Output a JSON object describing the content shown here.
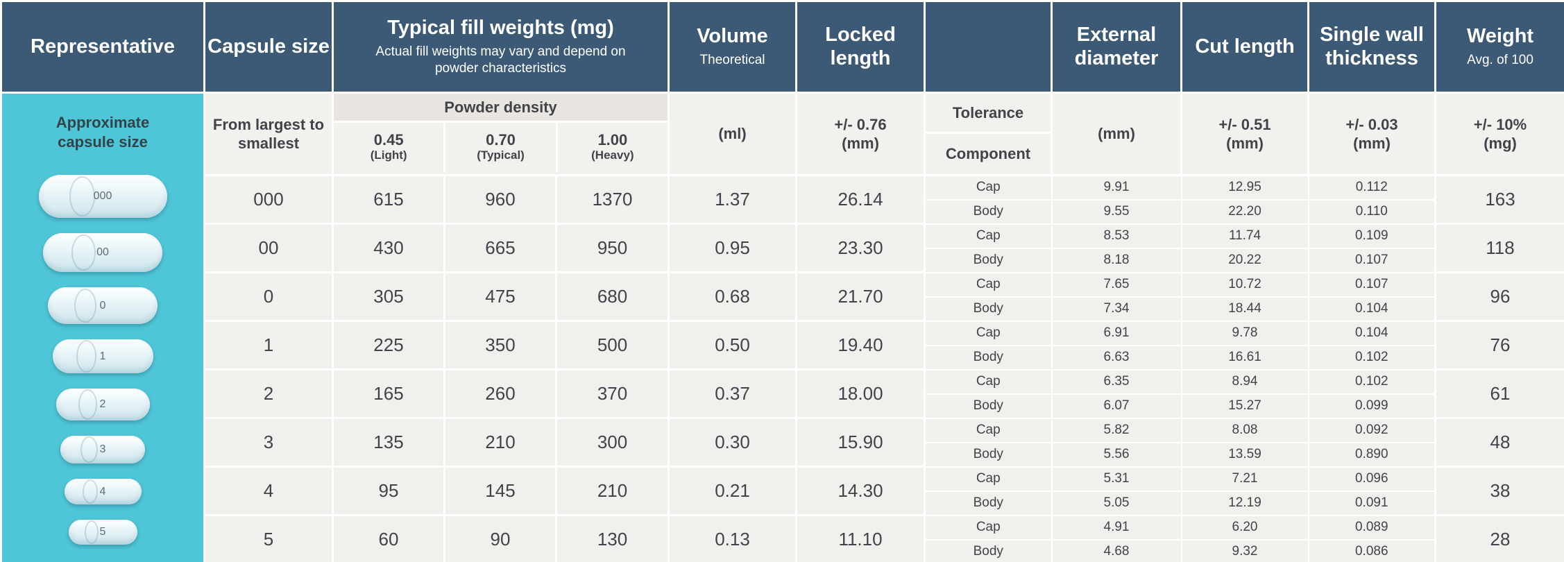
{
  "colors": {
    "header_bg": "#3c5975",
    "sidebar_bg": "#4ec6d7",
    "cell_bg": "#f2f0ed",
    "border": "#ffffff",
    "text_dark": "#3f444a",
    "text_light": "#ffffff"
  },
  "header": {
    "representative": "Representative",
    "capsule_size": "Capsule size",
    "fill_title": "Typical fill weights (mg)",
    "fill_subtitle": "Actual fill weights may vary and depend on powder characteristics",
    "volume": "Volume",
    "volume_sub": "Theoretical",
    "locked_length": "Locked length",
    "external_diameter": "External diameter",
    "cut_length": "Cut length",
    "single_wall": "Single wall thickness",
    "weight": "Weight",
    "weight_sub": "Avg. of 100"
  },
  "subheader": {
    "from_largest": "From largest to smallest",
    "powder_density": "Powder density",
    "densities": [
      {
        "value": "0.45",
        "label": "(Light)"
      },
      {
        "value": "0.70",
        "label": "(Typical)"
      },
      {
        "value": "1.00",
        "label": "(Heavy)"
      }
    ],
    "volume_unit": "(ml)",
    "locked_tol_value": "+/- 0.76",
    "locked_tol_unit": "(mm)",
    "tolerance": "Tolerance",
    "component": "Component",
    "diameter_unit": "(mm)",
    "cut_tol_value": "+/- 0.51",
    "cut_tol_unit": "(mm)",
    "wall_tol_value": "+/- 0.03",
    "wall_tol_unit": "(mm)",
    "weight_tol_value": "+/- 10%",
    "weight_tol_unit": "(mg)"
  },
  "sidebar": {
    "title": "Approximate capsule size",
    "capsules": [
      {
        "label": "000"
      },
      {
        "label": "00"
      },
      {
        "label": "0"
      },
      {
        "label": "1"
      },
      {
        "label": "2"
      },
      {
        "label": "3"
      },
      {
        "label": "4"
      },
      {
        "label": "5"
      }
    ]
  },
  "labels": {
    "cap": "Cap",
    "body": "Body"
  },
  "rows": [
    {
      "size": "000",
      "fill": [
        "615",
        "960",
        "1370"
      ],
      "volume": "1.37",
      "locked": "26.14",
      "cap": {
        "diameter": "9.91",
        "cut": "12.95",
        "wall": "0.112"
      },
      "body": {
        "diameter": "9.55",
        "cut": "22.20",
        "wall": "0.110"
      },
      "weight": "163"
    },
    {
      "size": "00",
      "fill": [
        "430",
        "665",
        "950"
      ],
      "volume": "0.95",
      "locked": "23.30",
      "cap": {
        "diameter": "8.53",
        "cut": "11.74",
        "wall": "0.109"
      },
      "body": {
        "diameter": "8.18",
        "cut": "20.22",
        "wall": "0.107"
      },
      "weight": "118"
    },
    {
      "size": "0",
      "fill": [
        "305",
        "475",
        "680"
      ],
      "volume": "0.68",
      "locked": "21.70",
      "cap": {
        "diameter": "7.65",
        "cut": "10.72",
        "wall": "0.107"
      },
      "body": {
        "diameter": "7.34",
        "cut": "18.44",
        "wall": "0.104"
      },
      "weight": "96"
    },
    {
      "size": "1",
      "fill": [
        "225",
        "350",
        "500"
      ],
      "volume": "0.50",
      "locked": "19.40",
      "cap": {
        "diameter": "6.91",
        "cut": "9.78",
        "wall": "0.104"
      },
      "body": {
        "diameter": "6.63",
        "cut": "16.61",
        "wall": "0.102"
      },
      "weight": "76"
    },
    {
      "size": "2",
      "fill": [
        "165",
        "260",
        "370"
      ],
      "volume": "0.37",
      "locked": "18.00",
      "cap": {
        "diameter": "6.35",
        "cut": "8.94",
        "wall": "0.102"
      },
      "body": {
        "diameter": "6.07",
        "cut": "15.27",
        "wall": "0.099"
      },
      "weight": "61"
    },
    {
      "size": "3",
      "fill": [
        "135",
        "210",
        "300"
      ],
      "volume": "0.30",
      "locked": "15.90",
      "cap": {
        "diameter": "5.82",
        "cut": "8.08",
        "wall": "0.092"
      },
      "body": {
        "diameter": "5.56",
        "cut": "13.59",
        "wall": "0.890"
      },
      "weight": "48"
    },
    {
      "size": "4",
      "fill": [
        "95",
        "145",
        "210"
      ],
      "volume": "0.21",
      "locked": "14.30",
      "cap": {
        "diameter": "5.31",
        "cut": "7.21",
        "wall": "0.096"
      },
      "body": {
        "diameter": "5.05",
        "cut": "12.19",
        "wall": "0.091"
      },
      "weight": "38"
    },
    {
      "size": "5",
      "fill": [
        "60",
        "90",
        "130"
      ],
      "volume": "0.13",
      "locked": "11.10",
      "cap": {
        "diameter": "4.91",
        "cut": "6.20",
        "wall": "0.089"
      },
      "body": {
        "diameter": "4.68",
        "cut": "9.32",
        "wall": "0.086"
      },
      "weight": "28"
    }
  ],
  "chart_data": {
    "type": "table",
    "title": "",
    "columns": [
      "Capsule size (from largest to smallest)",
      "Typical fill weight (mg) at powder density 0.45 (Light)",
      "Typical fill weight (mg) at powder density 0.70 (Typical)",
      "Typical fill weight (mg) at powder density 1.00 (Heavy)",
      "Volume theoretical (ml)",
      "Locked length +/- 0.76 (mm)",
      "Component",
      "External diameter (mm)",
      "Cut length +/- 0.51 (mm)",
      "Single wall thickness +/- 0.03 (mm)",
      "Weight avg. of 100 +/- 10% (mg)"
    ],
    "rows": [
      [
        "000",
        "615",
        "960",
        "1370",
        "1.37",
        "26.14",
        "Cap",
        "9.91",
        "12.95",
        "0.112",
        "163"
      ],
      [
        "000",
        "615",
        "960",
        "1370",
        "1.37",
        "26.14",
        "Body",
        "9.55",
        "22.20",
        "0.110",
        "163"
      ],
      [
        "00",
        "430",
        "665",
        "950",
        "0.95",
        "23.30",
        "Cap",
        "8.53",
        "11.74",
        "0.109",
        "118"
      ],
      [
        "00",
        "430",
        "665",
        "950",
        "0.95",
        "23.30",
        "Body",
        "8.18",
        "20.22",
        "0.107",
        "118"
      ],
      [
        "0",
        "305",
        "475",
        "680",
        "0.68",
        "21.70",
        "Cap",
        "7.65",
        "10.72",
        "0.107",
        "96"
      ],
      [
        "0",
        "305",
        "475",
        "680",
        "0.68",
        "21.70",
        "Body",
        "7.34",
        "18.44",
        "0.104",
        "96"
      ],
      [
        "1",
        "225",
        "350",
        "500",
        "0.50",
        "19.40",
        "Cap",
        "6.91",
        "9.78",
        "0.104",
        "76"
      ],
      [
        "1",
        "225",
        "350",
        "500",
        "0.50",
        "19.40",
        "Body",
        "6.63",
        "16.61",
        "0.102",
        "76"
      ],
      [
        "2",
        "165",
        "260",
        "370",
        "0.37",
        "18.00",
        "Cap",
        "6.35",
        "8.94",
        "0.102",
        "61"
      ],
      [
        "2",
        "165",
        "260",
        "370",
        "0.37",
        "18.00",
        "Body",
        "6.07",
        "15.27",
        "0.099",
        "61"
      ],
      [
        "3",
        "135",
        "210",
        "300",
        "0.30",
        "15.90",
        "Cap",
        "5.82",
        "8.08",
        "0.092",
        "48"
      ],
      [
        "3",
        "135",
        "210",
        "300",
        "0.30",
        "15.90",
        "Body",
        "5.56",
        "13.59",
        "0.890",
        "48"
      ],
      [
        "4",
        "95",
        "145",
        "210",
        "0.21",
        "14.30",
        "Cap",
        "5.31",
        "7.21",
        "0.096",
        "38"
      ],
      [
        "4",
        "95",
        "145",
        "210",
        "0.21",
        "14.30",
        "Body",
        "5.05",
        "12.19",
        "0.091",
        "38"
      ],
      [
        "5",
        "60",
        "90",
        "130",
        "0.13",
        "11.10",
        "Cap",
        "4.91",
        "6.20",
        "0.089",
        "28"
      ],
      [
        "5",
        "60",
        "90",
        "130",
        "0.13",
        "11.10",
        "Body",
        "4.68",
        "9.32",
        "0.086",
        "28"
      ]
    ]
  }
}
